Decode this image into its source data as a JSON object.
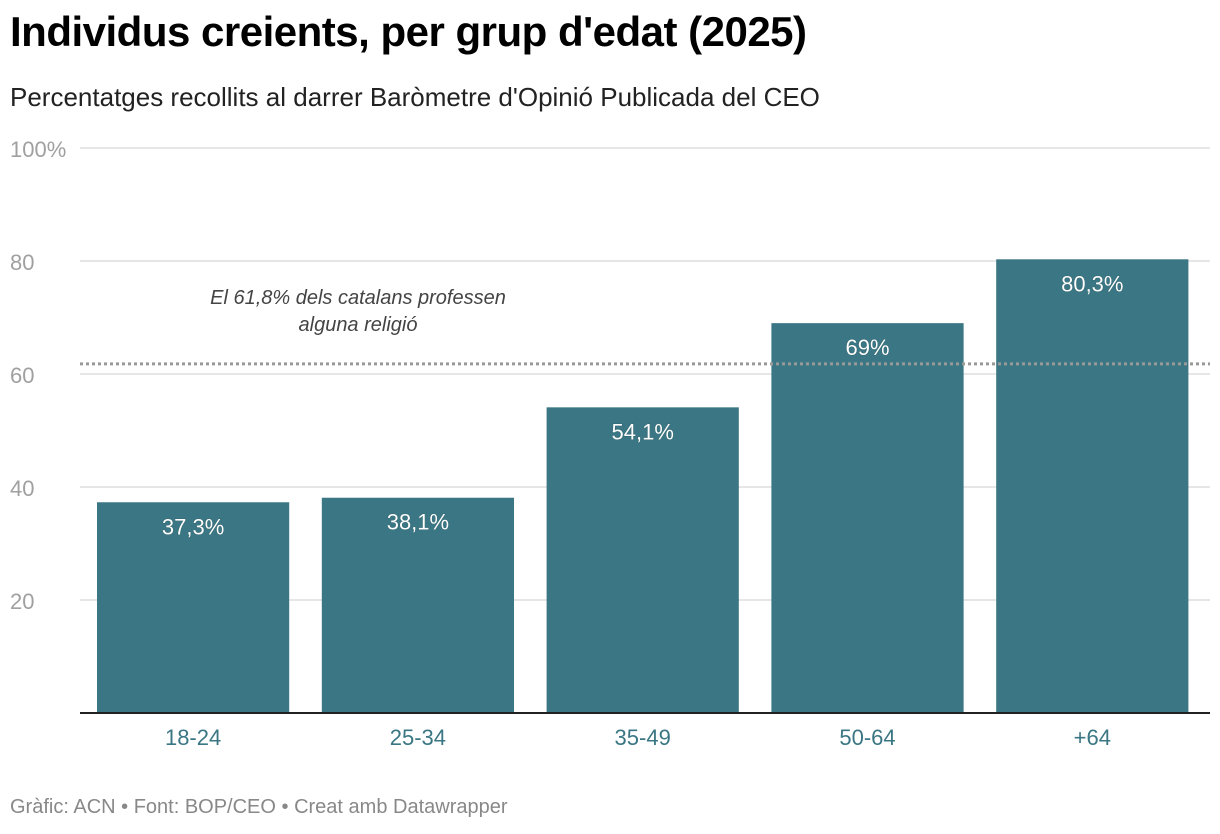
{
  "header": {
    "title": "Individus creients, per grup d'edat (2025)",
    "subtitle": "Percentatges recollits al darrer Baròmetre d'Opinió Publicada del CEO"
  },
  "chart_data": {
    "type": "bar",
    "categories": [
      "18-24",
      "25-34",
      "35-49",
      "50-64",
      "+64"
    ],
    "values": [
      37.3,
      38.1,
      54.1,
      69,
      80.3
    ],
    "value_labels": [
      "37,3%",
      "38,1%",
      "54,1%",
      "69%",
      "80,3%"
    ],
    "ylim": [
      0,
      100
    ],
    "y_ticks": [
      {
        "value": 20,
        "label": "20"
      },
      {
        "value": 40,
        "label": "40"
      },
      {
        "value": 60,
        "label": "60"
      },
      {
        "value": 80,
        "label": "80"
      },
      {
        "value": 100,
        "label": "100%"
      }
    ],
    "grid": true,
    "bar_color": "#3a7683",
    "reference_line": {
      "value": 61.8,
      "style": "dotted",
      "color": "#999999",
      "annotation": [
        "El 61,8% dels catalans professen",
        "alguna religió"
      ]
    }
  },
  "footer": {
    "source": "Gràfic: ACN • Font: BOP/CEO • Creat amb Datawrapper"
  }
}
